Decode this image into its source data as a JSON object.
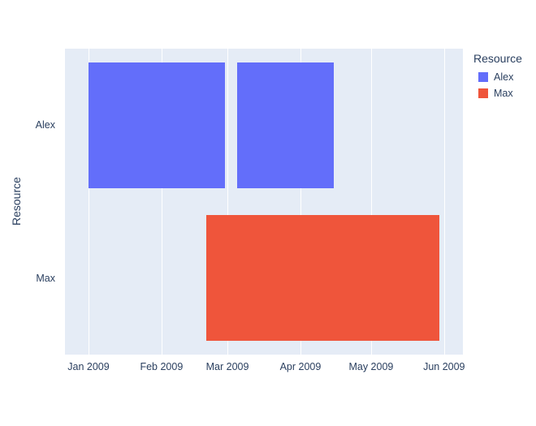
{
  "chart_data": {
    "type": "bar",
    "variant": "gantt-timeline",
    "title": "",
    "xlabel": "",
    "ylabel": "Resource",
    "legend_title": "Resource",
    "legend_position": "right",
    "grid": true,
    "figure_bg": "#FFFFFF",
    "plot_bg": "#E5ECF6",
    "grid_color": "#FFFFFF",
    "text_color": "#2A3F5F",
    "x_range": [
      "2008-12-22",
      "2009-06-09"
    ],
    "x_ticks": [
      {
        "date": "2009-01-01",
        "label": "Jan 2009"
      },
      {
        "date": "2009-02-01",
        "label": "Feb 2009"
      },
      {
        "date": "2009-03-01",
        "label": "Mar 2009"
      },
      {
        "date": "2009-04-01",
        "label": "Apr 2009"
      },
      {
        "date": "2009-05-01",
        "label": "May 2009"
      },
      {
        "date": "2009-06-01",
        "label": "Jun 2009"
      }
    ],
    "y_categories": [
      "Alex",
      "Max"
    ],
    "bar_width_frac": 0.82,
    "series": [
      {
        "name": "Alex",
        "color": "#636EFA",
        "bars": [
          {
            "row": "Alex",
            "start": "2009-01-01",
            "end": "2009-02-28"
          },
          {
            "row": "Alex",
            "start": "2009-03-05",
            "end": "2009-04-15"
          }
        ]
      },
      {
        "name": "Max",
        "color": "#EF553B",
        "bars": [
          {
            "row": "Max",
            "start": "2009-02-20",
            "end": "2009-05-30"
          }
        ]
      }
    ]
  }
}
